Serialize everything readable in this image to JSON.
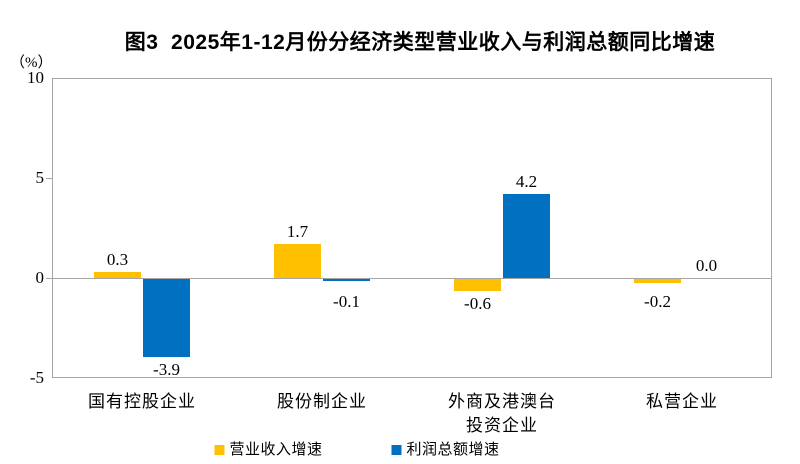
{
  "chart_data": {
    "type": "bar",
    "title": "图3  2025年1-12月份分经济类型营业收入与利润总额同比增速",
    "unit_label": "（%）",
    "categories": [
      "国有控股企业",
      "股份制企业",
      "外商及港澳台\n投资企业",
      "私营企业"
    ],
    "series": [
      {
        "name": "营业收入增速",
        "color": "#FFC000",
        "values": [
          0.3,
          1.7,
          -0.6,
          -0.2
        ],
        "labels": [
          "0.3",
          "1.7",
          "-0.6",
          "-0.2"
        ]
      },
      {
        "name": "利润总额增速",
        "color": "#0070C0",
        "values": [
          -3.9,
          -0.1,
          4.2,
          0.0
        ],
        "labels": [
          "-3.9",
          "-0.1",
          "4.2",
          "0.0"
        ]
      }
    ],
    "y_axis": {
      "min": -5,
      "max": 10,
      "tick_values": [
        10,
        5,
        0,
        -5
      ],
      "tick_labels": [
        "10",
        "5",
        "0",
        "-5"
      ]
    },
    "grid": "zero-line-only",
    "legend_position": "bottom",
    "axis_color": "#a6a6a6",
    "text_color": "#000000"
  }
}
